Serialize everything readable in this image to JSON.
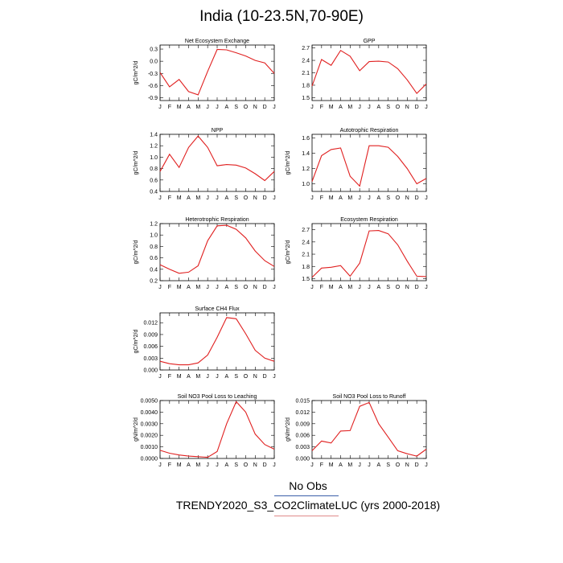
{
  "page": {
    "title": "India (10-23.5N,70-90E)",
    "legend_obs": "No Obs",
    "legend_model": "TRENDY2020_S3_CO2ClimateLUC (yrs 2000-2018)",
    "model_color": "#e02020"
  },
  "chart_data": [
    {
      "type": "line",
      "title": "Net Ecosystem Exchange",
      "ylabel": "gC/m^2/d",
      "categories": [
        "J",
        "F",
        "M",
        "A",
        "M",
        "J",
        "J",
        "A",
        "S",
        "O",
        "N",
        "D",
        "J"
      ],
      "yticks": [
        "-0.9",
        "-0.6",
        "-0.3",
        "0.0",
        "0.3"
      ],
      "ylim": [
        -0.97,
        0.4
      ],
      "values": [
        -0.28,
        -0.63,
        -0.45,
        -0.75,
        -0.83,
        -0.25,
        0.29,
        0.28,
        0.21,
        0.13,
        0.02,
        -0.04,
        -0.3
      ]
    },
    {
      "type": "line",
      "title": "GPP",
      "ylabel": "",
      "categories": [
        "J",
        "F",
        "M",
        "A",
        "M",
        "J",
        "J",
        "A",
        "S",
        "O",
        "N",
        "D",
        "J"
      ],
      "yticks": [
        "1.5",
        "1.8",
        "2.1",
        "2.4",
        "2.7"
      ],
      "ylim": [
        1.43,
        2.77
      ],
      "values": [
        1.78,
        2.42,
        2.28,
        2.64,
        2.5,
        2.15,
        2.37,
        2.38,
        2.36,
        2.2,
        1.93,
        1.6,
        1.83
      ]
    },
    {
      "type": "line",
      "title": "NPP",
      "ylabel": "gC/m^2/d",
      "categories": [
        "J",
        "F",
        "M",
        "A",
        "M",
        "J",
        "J",
        "A",
        "S",
        "O",
        "N",
        "D",
        "J"
      ],
      "yticks": [
        "0.4",
        "0.6",
        "0.8",
        "1.0",
        "1.2",
        "1.4"
      ],
      "ylim": [
        0.4,
        1.4
      ],
      "values": [
        0.75,
        1.05,
        0.82,
        1.17,
        1.37,
        1.17,
        0.85,
        0.87,
        0.86,
        0.81,
        0.71,
        0.59,
        0.75
      ]
    },
    {
      "type": "line",
      "title": "Autotrophic Respiration",
      "ylabel": "gC/m^2/d",
      "categories": [
        "J",
        "F",
        "M",
        "A",
        "M",
        "J",
        "J",
        "A",
        "S",
        "O",
        "N",
        "D",
        "J"
      ],
      "yticks": [
        "1.0",
        "1.2",
        "1.4",
        "1.6"
      ],
      "ylim": [
        0.9,
        1.65
      ],
      "values": [
        1.03,
        1.37,
        1.45,
        1.47,
        1.1,
        0.97,
        1.5,
        1.5,
        1.48,
        1.36,
        1.2,
        1.0,
        1.07
      ]
    },
    {
      "type": "line",
      "title": "Heterotrophic Respiration",
      "ylabel": "gC/m^2/d",
      "categories": [
        "J",
        "F",
        "M",
        "A",
        "M",
        "J",
        "J",
        "A",
        "S",
        "O",
        "N",
        "D",
        "J"
      ],
      "yticks": [
        "0.2",
        "0.4",
        "0.6",
        "0.8",
        "1.0",
        "1.2"
      ],
      "ylim": [
        0.2,
        1.2
      ],
      "values": [
        0.48,
        0.4,
        0.33,
        0.35,
        0.46,
        0.9,
        1.16,
        1.17,
        1.1,
        0.95,
        0.72,
        0.55,
        0.45
      ]
    },
    {
      "type": "line",
      "title": "Ecosystem Respiration",
      "ylabel": "gC/m^2/d",
      "categories": [
        "J",
        "F",
        "M",
        "A",
        "M",
        "J",
        "J",
        "A",
        "S",
        "O",
        "N",
        "D",
        "J"
      ],
      "yticks": [
        "1.5",
        "1.8",
        "2.1",
        "2.4",
        "2.7"
      ],
      "ylim": [
        1.45,
        2.85
      ],
      "values": [
        1.53,
        1.76,
        1.78,
        1.82,
        1.56,
        1.88,
        2.67,
        2.68,
        2.6,
        2.33,
        1.93,
        1.56,
        1.55
      ]
    },
    {
      "type": "line",
      "title": "Surface CH4 Flux",
      "ylabel": "gC/m^2/d",
      "categories": [
        "J",
        "F",
        "M",
        "A",
        "M",
        "J",
        "J",
        "A",
        "S",
        "O",
        "N",
        "D",
        "J"
      ],
      "yticks": [
        "0.000",
        "0.003",
        "0.006",
        "0.009",
        "0.012"
      ],
      "ylim": [
        0.0,
        0.0145
      ],
      "values": [
        0.0022,
        0.0016,
        0.0013,
        0.0013,
        0.0018,
        0.0038,
        0.0083,
        0.0133,
        0.013,
        0.0092,
        0.005,
        0.003,
        0.0022
      ]
    },
    {
      "type": "line",
      "title": "Soil NO3 Pool Loss to Leaching",
      "ylabel": "gN/m^2/d",
      "categories": [
        "J",
        "F",
        "M",
        "A",
        "M",
        "J",
        "J",
        "A",
        "S",
        "O",
        "N",
        "D",
        "J"
      ],
      "yticks": [
        "0.0000",
        "0.0010",
        "0.0020",
        "0.0030",
        "0.0040",
        "0.0050"
      ],
      "ylim": [
        0.0,
        0.005
      ],
      "values": [
        0.0007,
        0.00045,
        0.0003,
        0.0002,
        0.00015,
        0.0001,
        0.0006,
        0.003,
        0.0049,
        0.004,
        0.0021,
        0.0012,
        0.0008
      ]
    },
    {
      "type": "line",
      "title": "Soil NO3 Pool Loss to Runoff",
      "ylabel": "gN/m^2/d",
      "categories": [
        "J",
        "F",
        "M",
        "A",
        "M",
        "J",
        "J",
        "A",
        "S",
        "O",
        "N",
        "D",
        "J"
      ],
      "yticks": [
        "0.000",
        "0.003",
        "0.006",
        "0.009",
        "0.012",
        "0.015"
      ],
      "ylim": [
        0.0,
        0.015
      ],
      "values": [
        0.002,
        0.0045,
        0.004,
        0.0071,
        0.0072,
        0.0135,
        0.0145,
        0.009,
        0.0055,
        0.002,
        0.0012,
        0.0006,
        0.0024
      ]
    }
  ]
}
